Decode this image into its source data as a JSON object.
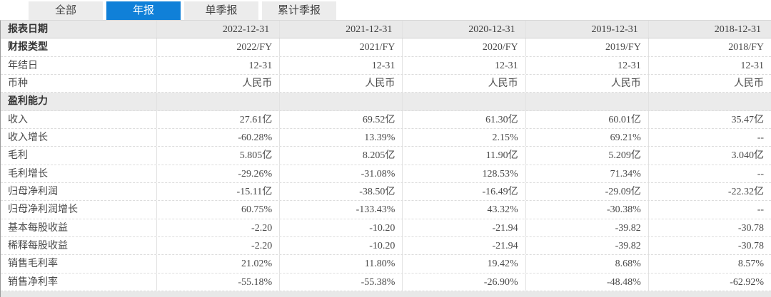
{
  "colors": {
    "accent": "#1080d8",
    "tab_inactive_bg": "#ececec",
    "header_row_bg": "#e9e9e9",
    "section_row_bg": "#ebebeb",
    "text": "#4a4a4a"
  },
  "tabs": [
    {
      "id": "all",
      "label": "全部",
      "active": false
    },
    {
      "id": "annual",
      "label": "年报",
      "active": true
    },
    {
      "id": "single-quarter",
      "label": "单季报",
      "active": false
    },
    {
      "id": "cumulative-quarter",
      "label": "累计季报",
      "active": false
    }
  ],
  "table": {
    "header": {
      "label": "报表日期",
      "dates": [
        "2022-12-31",
        "2021-12-31",
        "2020-12-31",
        "2019-12-31",
        "2018-12-31"
      ]
    },
    "rows": [
      {
        "label": "财报类型",
        "bold": true,
        "values": [
          "2022/FY",
          "2021/FY",
          "2020/FY",
          "2019/FY",
          "2018/FY"
        ]
      },
      {
        "label": "年结日",
        "bold": false,
        "values": [
          "12-31",
          "12-31",
          "12-31",
          "12-31",
          "12-31"
        ]
      },
      {
        "label": "币种",
        "bold": false,
        "values": [
          "人民币",
          "人民币",
          "人民币",
          "人民币",
          "人民币"
        ]
      },
      {
        "label": "盈利能力",
        "bold": true,
        "section": true,
        "values": [
          "",
          "",
          "",
          "",
          ""
        ]
      },
      {
        "label": "收入",
        "values": [
          "27.61亿",
          "69.52亿",
          "61.30亿",
          "60.01亿",
          "35.47亿"
        ]
      },
      {
        "label": "收入增长",
        "values": [
          "-60.28%",
          "13.39%",
          "2.15%",
          "69.21%",
          "--"
        ]
      },
      {
        "label": "毛利",
        "values": [
          "5.805亿",
          "8.205亿",
          "11.90亿",
          "5.209亿",
          "3.040亿"
        ]
      },
      {
        "label": "毛利增长",
        "values": [
          "-29.26%",
          "-31.08%",
          "128.53%",
          "71.34%",
          "--"
        ]
      },
      {
        "label": "归母净利润",
        "values": [
          "-15.11亿",
          "-38.50亿",
          "-16.49亿",
          "-29.09亿",
          "-22.32亿"
        ]
      },
      {
        "label": "归母净利润增长",
        "values": [
          "60.75%",
          "-133.43%",
          "43.32%",
          "-30.38%",
          "--"
        ]
      },
      {
        "label": "基本每股收益",
        "values": [
          "-2.20",
          "-10.20",
          "-21.94",
          "-39.82",
          "-30.78"
        ]
      },
      {
        "label": "稀释每股收益",
        "values": [
          "-2.20",
          "-10.20",
          "-21.94",
          "-39.82",
          "-30.78"
        ]
      },
      {
        "label": "销售毛利率",
        "values": [
          "21.02%",
          "11.80%",
          "19.42%",
          "8.68%",
          "8.57%"
        ]
      },
      {
        "label": "销售净利率",
        "values": [
          "-55.18%",
          "-55.38%",
          "-26.90%",
          "-48.48%",
          "-62.92%"
        ]
      }
    ]
  }
}
